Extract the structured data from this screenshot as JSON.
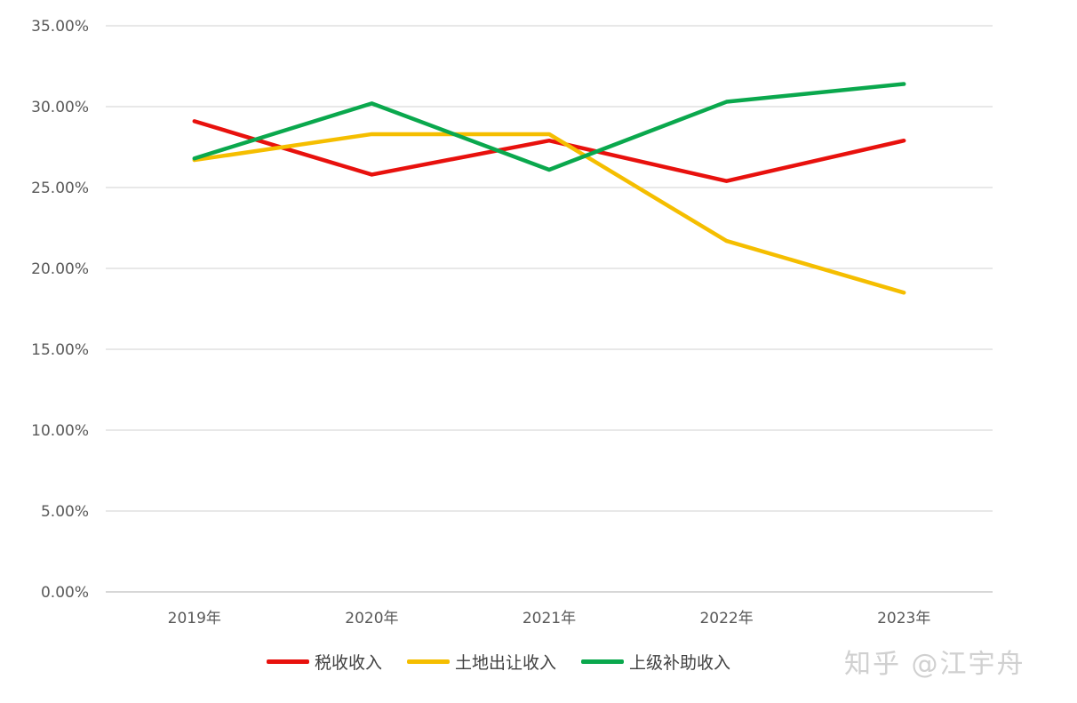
{
  "chart_data": {
    "type": "line",
    "categories": [
      "2019年",
      "2020年",
      "2021年",
      "2022年",
      "2023年"
    ],
    "series": [
      {
        "name": "税收收入",
        "color": "#e8110d",
        "values": [
          29.1,
          25.8,
          27.9,
          25.4,
          27.9
        ]
      },
      {
        "name": "土地出让收入",
        "color": "#f5be00",
        "values": [
          26.7,
          28.3,
          28.3,
          21.7,
          18.5
        ]
      },
      {
        "name": "上级补助收入",
        "color": "#0aa84d",
        "values": [
          26.8,
          30.2,
          26.1,
          30.3,
          31.4
        ]
      }
    ],
    "ylim": [
      0,
      35
    ],
    "yticks": [
      "0.00%",
      "5.00%",
      "10.00%",
      "15.00%",
      "20.00%",
      "25.00%",
      "30.00%",
      "35.00%"
    ],
    "grid": true,
    "legend_position": "bottom"
  },
  "watermark": "知乎 @江宇舟"
}
